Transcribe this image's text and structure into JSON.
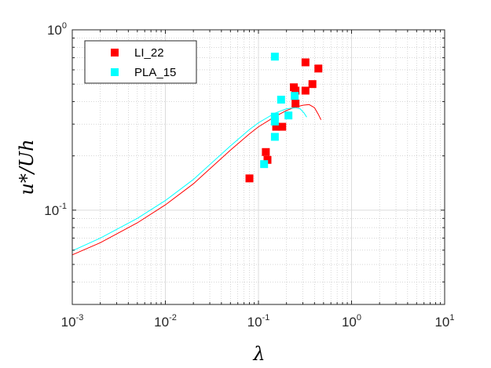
{
  "chart_data": {
    "type": "scatter",
    "xscale": "log",
    "yscale": "log",
    "xlim": [
      0.001,
      10
    ],
    "ylim": [
      0.03,
      1
    ],
    "xlabel": "λ",
    "ylabel": "u*/Uh",
    "grid": true,
    "legend_position": "top-left",
    "x_ticks": [
      {
        "base": "10",
        "exp": "-3",
        "value": 0.001
      },
      {
        "base": "10",
        "exp": "-2",
        "value": 0.01
      },
      {
        "base": "10",
        "exp": "-1",
        "value": 0.1
      },
      {
        "base": "10",
        "exp": "0",
        "value": 1
      },
      {
        "base": "10",
        "exp": "1",
        "value": 10
      }
    ],
    "y_ticks": [
      {
        "base": "10",
        "exp": "-1",
        "value": 0.1
      },
      {
        "base": "10",
        "exp": "0",
        "value": 1
      }
    ],
    "series": [
      {
        "name": "LI_22",
        "color": "#ff0000",
        "marker": "square",
        "points": [
          {
            "x": 0.08,
            "y": 0.15
          },
          {
            "x": 0.12,
            "y": 0.21
          },
          {
            "x": 0.125,
            "y": 0.19
          },
          {
            "x": 0.155,
            "y": 0.29
          },
          {
            "x": 0.18,
            "y": 0.29
          },
          {
            "x": 0.24,
            "y": 0.48
          },
          {
            "x": 0.25,
            "y": 0.46
          },
          {
            "x": 0.25,
            "y": 0.39
          },
          {
            "x": 0.32,
            "y": 0.66
          },
          {
            "x": 0.32,
            "y": 0.46
          },
          {
            "x": 0.38,
            "y": 0.5
          },
          {
            "x": 0.44,
            "y": 0.61
          }
        ]
      },
      {
        "name": "PLA_15",
        "color": "#00ffff",
        "marker": "square",
        "points": [
          {
            "x": 0.115,
            "y": 0.18
          },
          {
            "x": 0.15,
            "y": 0.71
          },
          {
            "x": 0.15,
            "y": 0.33
          },
          {
            "x": 0.15,
            "y": 0.31
          },
          {
            "x": 0.15,
            "y": 0.255
          },
          {
            "x": 0.175,
            "y": 0.41
          },
          {
            "x": 0.21,
            "y": 0.335
          },
          {
            "x": 0.245,
            "y": 0.43
          }
        ]
      }
    ],
    "curves": [
      {
        "color": "#ff0000",
        "points": [
          {
            "x": 0.001,
            "y": 0.0565
          },
          {
            "x": 0.002,
            "y": 0.066
          },
          {
            "x": 0.005,
            "y": 0.085
          },
          {
            "x": 0.01,
            "y": 0.107
          },
          {
            "x": 0.02,
            "y": 0.14
          },
          {
            "x": 0.05,
            "y": 0.215
          },
          {
            "x": 0.08,
            "y": 0.265
          },
          {
            "x": 0.1,
            "y": 0.29
          },
          {
            "x": 0.15,
            "y": 0.33
          },
          {
            "x": 0.2,
            "y": 0.357
          },
          {
            "x": 0.25,
            "y": 0.373
          },
          {
            "x": 0.3,
            "y": 0.382
          },
          {
            "x": 0.35,
            "y": 0.385
          },
          {
            "x": 0.4,
            "y": 0.37
          },
          {
            "x": 0.44,
            "y": 0.34
          },
          {
            "x": 0.47,
            "y": 0.317
          }
        ]
      },
      {
        "color": "#00ffff",
        "points": [
          {
            "x": 0.001,
            "y": 0.0595
          },
          {
            "x": 0.002,
            "y": 0.07
          },
          {
            "x": 0.005,
            "y": 0.09
          },
          {
            "x": 0.01,
            "y": 0.113
          },
          {
            "x": 0.02,
            "y": 0.148
          },
          {
            "x": 0.05,
            "y": 0.227
          },
          {
            "x": 0.08,
            "y": 0.28
          },
          {
            "x": 0.1,
            "y": 0.305
          },
          {
            "x": 0.15,
            "y": 0.345
          },
          {
            "x": 0.2,
            "y": 0.365
          },
          {
            "x": 0.25,
            "y": 0.37
          },
          {
            "x": 0.28,
            "y": 0.365
          },
          {
            "x": 0.31,
            "y": 0.345
          },
          {
            "x": 0.33,
            "y": 0.328
          }
        ]
      }
    ]
  }
}
